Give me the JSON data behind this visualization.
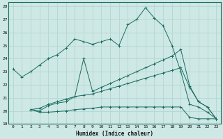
{
  "xlabel": "Humidex (Indice chaleur)",
  "bg_color": "#cde8e5",
  "grid_color": "#b8d8d5",
  "line_color": "#1a6b60",
  "xlim": [
    -0.5,
    23.5
  ],
  "ylim": [
    19,
    28.3
  ],
  "yticks": [
    19,
    20,
    21,
    22,
    23,
    24,
    25,
    26,
    27,
    28
  ],
  "xticks": [
    0,
    1,
    2,
    3,
    4,
    5,
    6,
    7,
    8,
    9,
    10,
    11,
    12,
    13,
    14,
    15,
    16,
    17,
    18,
    19,
    20,
    21,
    22,
    23
  ],
  "line1_x": [
    0,
    1,
    2,
    3,
    4,
    5,
    6,
    7,
    8,
    9,
    10,
    11,
    12,
    13,
    14,
    15,
    16,
    17,
    18,
    19,
    20,
    21,
    22,
    23
  ],
  "line1_y": [
    23.2,
    22.6,
    23.0,
    23.5,
    24.0,
    24.3,
    24.8,
    25.5,
    25.3,
    25.1,
    25.3,
    25.5,
    25.0,
    26.6,
    27.0,
    27.9,
    27.1,
    26.5,
    25.0,
    23.0,
    20.5,
    20.3,
    19.9,
    19.4
  ],
  "line2_x": [
    2,
    3,
    4,
    5,
    6,
    7,
    8,
    9,
    10,
    11,
    12,
    13,
    14,
    15,
    16,
    17,
    18,
    19,
    20,
    21,
    22,
    23
  ],
  "line2_y": [
    20.1,
    20.2,
    20.5,
    20.7,
    20.9,
    21.1,
    24.0,
    21.5,
    21.8,
    22.1,
    22.4,
    22.7,
    23.0,
    23.3,
    23.6,
    23.9,
    24.2,
    24.7,
    21.9,
    20.7,
    20.3,
    19.4
  ],
  "line3_x": [
    2,
    3,
    4,
    5,
    6,
    7,
    8,
    9,
    10,
    11,
    12,
    13,
    14,
    15,
    16,
    17,
    18,
    19,
    20,
    21,
    22,
    23
  ],
  "line3_y": [
    20.1,
    20.0,
    20.4,
    20.6,
    20.7,
    21.1,
    21.2,
    21.3,
    21.5,
    21.7,
    21.9,
    22.1,
    22.3,
    22.5,
    22.7,
    22.9,
    23.1,
    23.3,
    21.8,
    20.7,
    20.3,
    19.4
  ],
  "line4_x": [
    2,
    3,
    4,
    5,
    6,
    7,
    8,
    9,
    10,
    11,
    12,
    13,
    14,
    15,
    16,
    17,
    18,
    19,
    20,
    21,
    22,
    23
  ],
  "line4_y": [
    20.1,
    19.9,
    19.9,
    19.95,
    20.0,
    20.1,
    20.15,
    20.2,
    20.3,
    20.3,
    20.3,
    20.3,
    20.3,
    20.3,
    20.3,
    20.3,
    20.3,
    20.3,
    19.5,
    19.4,
    19.4,
    19.4
  ]
}
